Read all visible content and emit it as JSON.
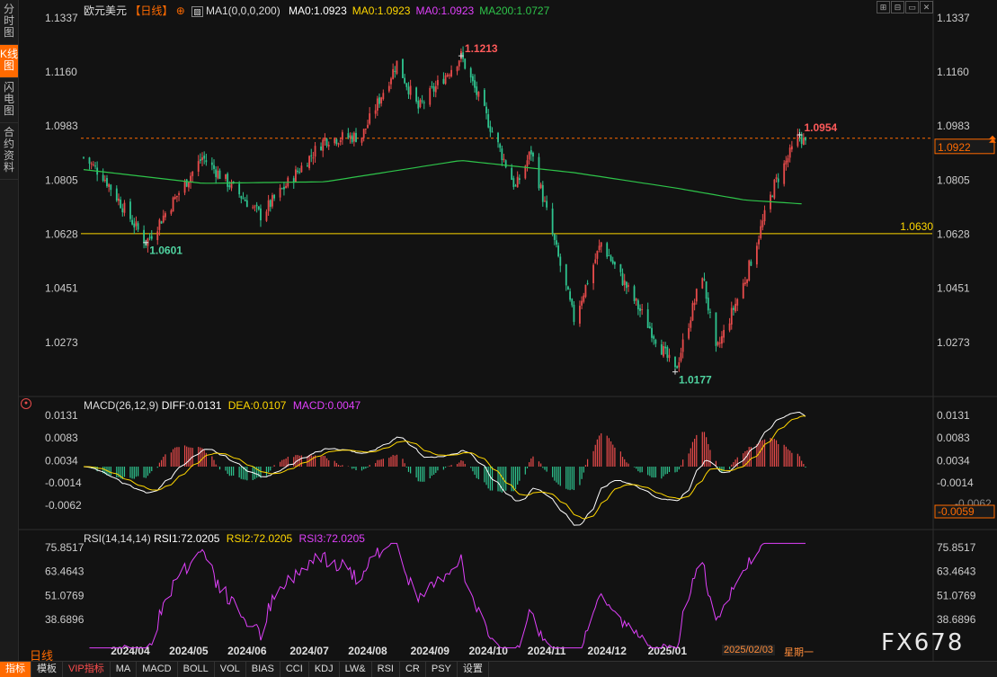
{
  "sidebar": {
    "tabs": [
      {
        "label": "分时图",
        "active": false
      },
      {
        "label": "K线图",
        "active": true
      },
      {
        "label": "闪电图",
        "active": false
      },
      {
        "label": "合约资料",
        "active": false
      }
    ]
  },
  "header": {
    "symbol": "欧元美元",
    "period": "【日线】",
    "ma_label": "MA1(0,0,0,200)",
    "ma_values": [
      {
        "text": "MA0:1.0923",
        "color": "#ffffff"
      },
      {
        "text": "MA0:1.0923",
        "color": "#ffd700"
      },
      {
        "text": "MA0:1.0923",
        "color": "#e040fb"
      },
      {
        "text": "MA200:1.0727",
        "color": "#2ec44a"
      }
    ]
  },
  "main_panel": {
    "y_ticks": [
      "1.1337",
      "1.1160",
      "1.0983",
      "1.0805",
      "1.0628",
      "1.0451",
      "1.0273"
    ],
    "y_tick_values": [
      1.1337,
      1.116,
      1.0983,
      1.0805,
      1.0628,
      1.0451,
      1.0273
    ],
    "current_price": "1.0922",
    "support_line_label": "1.0630",
    "annotations": {
      "high": "1.1213",
      "low_1": "1.0601",
      "low_2": "1.0177",
      "recent_high": "1.0954"
    }
  },
  "macd_panel": {
    "title": "MACD(26,12,9)",
    "diff": "DIFF:0.0131",
    "dea": "DEA:0.0107",
    "macd": "MACD:0.0047",
    "y_ticks": [
      "0.0131",
      "0.0083",
      "0.0034",
      "-0.0014",
      "-0.0062"
    ],
    "y_tick_values": [
      0.0131,
      0.0083,
      0.0034,
      -0.0014,
      -0.0062
    ],
    "current": "-0.0059",
    "cut_tick": "-0.0062"
  },
  "rsi_panel": {
    "title": "RSI(14,14,14)",
    "rsi1": "RSI1:72.0205",
    "rsi2": "RSI2:72.0205",
    "rsi3": "RSI3:72.0205",
    "y_ticks": [
      "75.8517",
      "63.4643",
      "51.0769",
      "38.6896"
    ],
    "y_tick_values": [
      75.8517,
      63.4643,
      51.0769,
      38.6896
    ]
  },
  "x_axis": {
    "labels": [
      "2024/04",
      "2024/05",
      "2024/06",
      "2024/07",
      "2024/08",
      "2024/09",
      "2024/10",
      "2024/11",
      "2024/12",
      "2025/01"
    ],
    "cursor_date": "2025/02/03",
    "cursor_weekday": "星期一"
  },
  "period_label": "日线",
  "bottom_tabs": [
    {
      "label": "指标",
      "active": true,
      "vip": false
    },
    {
      "label": "模板",
      "active": false,
      "vip": false
    },
    {
      "label": "VIP指标",
      "active": false,
      "vip": true
    },
    {
      "label": "MA",
      "active": false,
      "vip": false
    },
    {
      "label": "MACD",
      "active": false,
      "vip": false
    },
    {
      "label": "BOLL",
      "active": false,
      "vip": false
    },
    {
      "label": "VOL",
      "active": false,
      "vip": false
    },
    {
      "label": "BIAS",
      "active": false,
      "vip": false
    },
    {
      "label": "CCI",
      "active": false,
      "vip": false
    },
    {
      "label": "KDJ",
      "active": false,
      "vip": false
    },
    {
      "label": "LW&",
      "active": false,
      "vip": false
    },
    {
      "label": "RSI",
      "active": false,
      "vip": false
    },
    {
      "label": "CR",
      "active": false,
      "vip": false
    },
    {
      "label": "PSY",
      "active": false,
      "vip": false
    },
    {
      "label": "设置",
      "active": false,
      "vip": false
    }
  ],
  "window_buttons": [
    "⊞",
    "⊟",
    "▭",
    "✕"
  ],
  "watermark": "FX678",
  "colors": {
    "up": "#e84b4b",
    "down": "#2ec48f",
    "ma200": "#2ec44a",
    "support": "#ffd700",
    "dif": "#ffffff",
    "dea": "#ffd700",
    "rsi": "#e040fb",
    "accent": "#ff6a00"
  },
  "chart_data": {
    "type": "candlestick",
    "price_range": [
      1.015,
      1.1337
    ],
    "anchor_points": [
      {
        "date": "2024/03/15",
        "close": 1.088
      },
      {
        "date": "2024/03/25",
        "close": 1.082
      },
      {
        "date": "2024/04/16",
        "close": 1.0601
      },
      {
        "date": "2024/05/15",
        "close": 1.088
      },
      {
        "date": "2024/06/14",
        "close": 1.069
      },
      {
        "date": "2024/07/17",
        "close": 1.094
      },
      {
        "date": "2024/08/05",
        "close": 1.095
      },
      {
        "date": "2024/08/23",
        "close": 1.119
      },
      {
        "date": "2024/09/03",
        "close": 1.104
      },
      {
        "date": "2024/09/25",
        "close": 1.1213
      },
      {
        "date": "2024/10/23",
        "close": 1.078
      },
      {
        "date": "2024/10/31",
        "close": 1.09
      },
      {
        "date": "2024/11/22",
        "close": 1.035
      },
      {
        "date": "2024/12/06",
        "close": 1.06
      },
      {
        "date": "2025/01/13",
        "close": 1.0177
      },
      {
        "date": "2025/01/27",
        "close": 1.05
      },
      {
        "date": "2025/02/03",
        "close": 1.024
      },
      {
        "date": "2025/02/18",
        "close": 1.048
      },
      {
        "date": "2025/03/05",
        "close": 1.079
      },
      {
        "date": "2025/03/18",
        "close": 1.0954
      },
      {
        "date": "2025/03/21",
        "close": 1.0922
      }
    ],
    "ma200_anchor_points": [
      {
        "date": "2024/03/15",
        "value": 1.084
      },
      {
        "date": "2024/05/15",
        "value": 1.0795
      },
      {
        "date": "2024/07/17",
        "value": 1.08
      },
      {
        "date": "2024/09/25",
        "value": 1.087
      },
      {
        "date": "2024/11/22",
        "value": 1.083
      },
      {
        "date": "2025/01/13",
        "value": 1.078
      },
      {
        "date": "2025/02/18",
        "value": 1.074
      },
      {
        "date": "2025/03/21",
        "value": 1.0727
      }
    ],
    "support_level": 1.063
  }
}
